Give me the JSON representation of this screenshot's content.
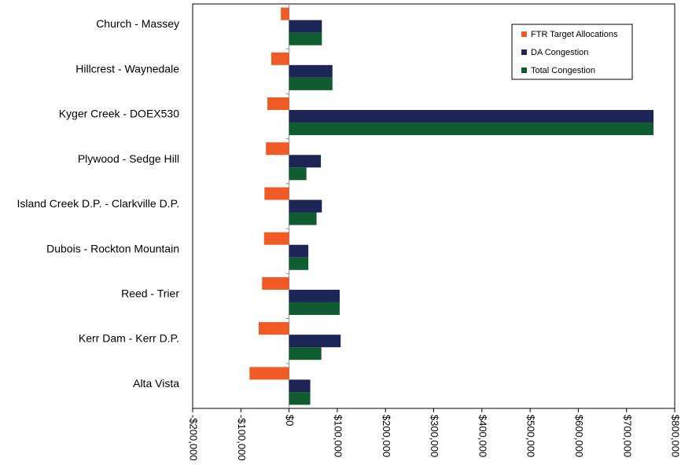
{
  "chart_data": {
    "type": "bar",
    "orientation": "horizontal",
    "categories": [
      "Church - Massey",
      "Hillcrest - Waynedale",
      "Kyger Creek - DOEX530",
      "Plywood - Sedge Hill",
      "Island Creek D.P. - Clarkville D.P.",
      "Dubois - Rockton Mountain",
      "Reed - Trier",
      "Kerr Dam - Kerr D.P.",
      "Alta Vista"
    ],
    "series": [
      {
        "name": "FTR Target Allocations",
        "color": "#f05a24",
        "values": [
          -17000,
          -37000,
          -45000,
          -48000,
          -51000,
          -52000,
          -56000,
          -63000,
          -82000
        ]
      },
      {
        "name": "DA Congestion",
        "color": "#1c2556",
        "values": [
          68000,
          90000,
          756000,
          66000,
          68000,
          40000,
          105000,
          107000,
          44000
        ]
      },
      {
        "name": "Total Congestion",
        "color": "#0e5c2f",
        "values": [
          68000,
          90000,
          756000,
          36000,
          57000,
          40000,
          105000,
          67000,
          44000
        ]
      }
    ],
    "x_ticks": [
      "-$200,000",
      "-$100,000",
      "$0",
      "$100,000",
      "$200,000",
      "$300,000",
      "$400,000",
      "$500,000",
      "$600,000",
      "$700,000",
      "$800,000"
    ],
    "x_tick_values": [
      -200000,
      -100000,
      0,
      100000,
      200000,
      300000,
      400000,
      500000,
      600000,
      700000,
      800000
    ],
    "xlim": [
      -200000,
      800000
    ],
    "title": "",
    "xlabel": "",
    "ylabel": "",
    "grid": false,
    "legend_position": "top-right"
  }
}
